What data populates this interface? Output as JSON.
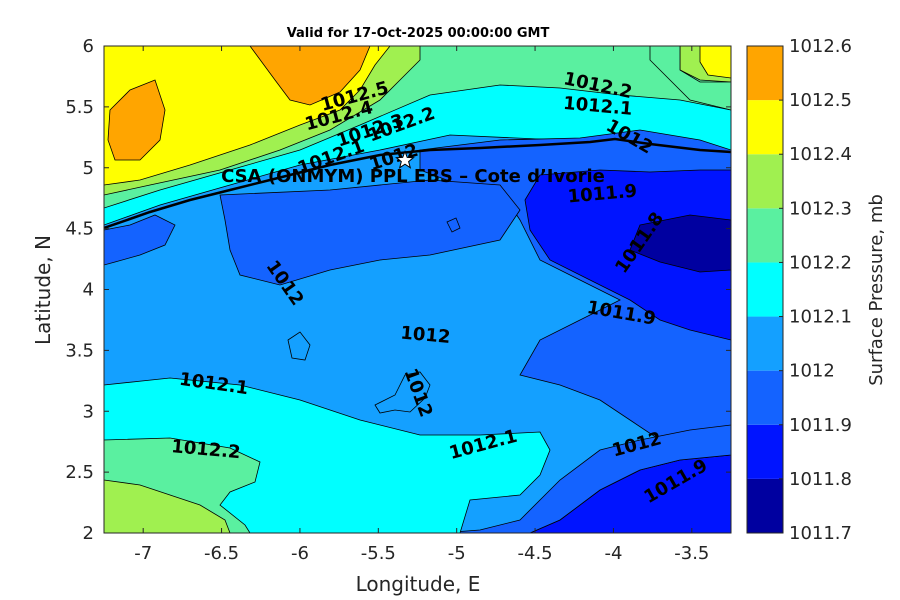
{
  "title": "Valid for 17-Oct-2025 00:00:00 GMT",
  "colors": {
    "1011.7": "#0000a0",
    "1011.8": "#0014ff",
    "1011.9": "#1463ff",
    "1012.0": "#14a0ff",
    "1012.1": "#00ffff",
    "1012.2": "#5af0a0",
    "1012.3": "#a0f050",
    "1012.4": "#ffff00",
    "1012.5": "#ffa500",
    "1012.6": "#ff5a00"
  },
  "chart_data": {
    "type": "contour-map",
    "x_axis": {
      "label": "Longitude, E",
      "range": [
        -7.25,
        -3.25
      ],
      "ticks": [
        -7,
        -6.5,
        -6,
        -5.5,
        -5,
        -4.5,
        -4,
        -3.5
      ],
      "tick_labels": [
        "-7",
        "-6.5",
        "-6",
        "-5.5",
        "-5",
        "-4.5",
        "-4",
        "-3.5"
      ]
    },
    "y_axis": {
      "label": "Latitude, N",
      "range": [
        2,
        6
      ],
      "ticks": [
        2,
        2.5,
        3,
        3.5,
        4,
        4.5,
        5,
        5.5,
        6
      ],
      "tick_labels": [
        "2",
        "2.5",
        "3",
        "3.5",
        "4",
        "4.5",
        "5",
        "5.5",
        "6"
      ]
    },
    "colorbar": {
      "label": "Surface Pressure, mb",
      "levels": [
        1011.7,
        1011.8,
        1011.9,
        1012.0,
        1012.1,
        1012.2,
        1012.3,
        1012.4,
        1012.5,
        1012.6
      ],
      "tick_labels": [
        "1011.7",
        "1011.8",
        "1011.9",
        "1012",
        "1012.1",
        "1012.2",
        "1012.3",
        "1012.4",
        "1012.5",
        "1012.6"
      ]
    },
    "station": {
      "name": "CSA (ONMYM) PPL EBS  – Cote d’Ivorie",
      "lon": -5.33,
      "lat": 5.06
    },
    "contour_labels": [
      {
        "text": "1012.5",
        "lon": -5.65,
        "lat": 5.58,
        "angle": -15
      },
      {
        "text": "1012.4",
        "lon": -5.75,
        "lat": 5.42,
        "angle": -15
      },
      {
        "text": "1012.3",
        "lon": -5.55,
        "lat": 5.3,
        "angle": -18
      },
      {
        "text": "1012.2",
        "lon": -5.35,
        "lat": 5.35,
        "angle": -20
      },
      {
        "text": "1012.1",
        "lon": -5.8,
        "lat": 5.08,
        "angle": -20
      },
      {
        "text": "1012",
        "lon": -5.4,
        "lat": 5.08,
        "angle": -18
      },
      {
        "text": "1012.2",
        "lon": -4.1,
        "lat": 5.67,
        "angle": 12
      },
      {
        "text": "1012.1",
        "lon": -4.1,
        "lat": 5.5,
        "angle": 5
      },
      {
        "text": "1012",
        "lon": -3.9,
        "lat": 5.25,
        "angle": 30
      },
      {
        "text": "1011.9",
        "lon": -4.07,
        "lat": 4.78,
        "angle": -5
      },
      {
        "text": "1011.8",
        "lon": -3.83,
        "lat": 4.38,
        "angle": -55
      },
      {
        "text": "1011.9",
        "lon": -3.95,
        "lat": 3.8,
        "angle": 10
      },
      {
        "text": "1012",
        "lon": -6.1,
        "lat": 4.05,
        "angle": 55
      },
      {
        "text": "1012",
        "lon": -5.2,
        "lat": 3.62,
        "angle": 5
      },
      {
        "text": "1012",
        "lon": -5.25,
        "lat": 3.15,
        "angle": 70
      },
      {
        "text": "1012.1",
        "lon": -6.55,
        "lat": 3.22,
        "angle": 8
      },
      {
        "text": "1012.2",
        "lon": -6.6,
        "lat": 2.68,
        "angle": 5
      },
      {
        "text": "1012.1",
        "lon": -4.83,
        "lat": 2.72,
        "angle": -15
      },
      {
        "text": "1012",
        "lon": -3.85,
        "lat": 2.72,
        "angle": -15
      },
      {
        "text": "1011.9",
        "lon": -3.6,
        "lat": 2.42,
        "angle": -30
      }
    ]
  }
}
